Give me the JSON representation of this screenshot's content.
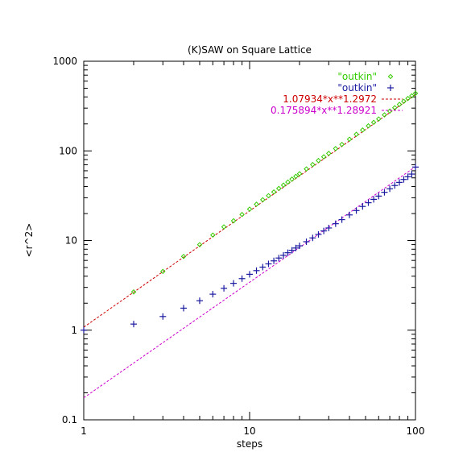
{
  "chart_data": {
    "type": "scatter",
    "title": "(K)SAW on Square Lattice",
    "xlabel": "steps",
    "ylabel": "<r^2>",
    "xscale": "log",
    "yscale": "log",
    "xlim": [
      1,
      100
    ],
    "ylim": [
      0.1,
      1000
    ],
    "x_ticks": [
      1,
      10,
      100
    ],
    "x_tick_labels": [
      "1",
      "10",
      "100"
    ],
    "y_ticks": [
      0.1,
      1,
      10,
      100,
      1000
    ],
    "y_tick_labels": [
      "0.1",
      "1",
      "10",
      "100",
      "1000"
    ],
    "grid": false,
    "legend_position": "top-right",
    "series": [
      {
        "name": "\"outkin\"",
        "marker": "diamond",
        "color": "#33cc00",
        "x": [
          2,
          3,
          4,
          5,
          6,
          7,
          8,
          9,
          10,
          11,
          12,
          13,
          14,
          15,
          16,
          17,
          18,
          19,
          20,
          22,
          24,
          26,
          28,
          30,
          33,
          36,
          40,
          44,
          48,
          52,
          56,
          60,
          65,
          70,
          75,
          80,
          85,
          90,
          95,
          100
        ],
        "y": [
          2.67,
          4.52,
          6.64,
          8.99,
          11.5,
          14.2,
          16.6,
          19.5,
          22.4,
          25.4,
          28.5,
          31.6,
          34.8,
          38.1,
          41.5,
          44.9,
          48.4,
          52.0,
          55.6,
          62.9,
          70.4,
          78.1,
          85.9,
          93.8,
          106,
          118,
          135,
          153,
          171,
          190,
          208,
          227,
          252,
          278,
          303,
          330,
          357,
          384,
          411,
          439
        ]
      },
      {
        "name": "\"outkin\"",
        "marker": "plus",
        "color": "#1a1aa0",
        "x": [
          1,
          2,
          3,
          4,
          5,
          6,
          7,
          8,
          9,
          10,
          11,
          12,
          13,
          14,
          15,
          16,
          17,
          18,
          19,
          20,
          22,
          24,
          26,
          28,
          30,
          33,
          36,
          40,
          44,
          48,
          52,
          56,
          60,
          65,
          70,
          75,
          80,
          85,
          90,
          95,
          100
        ],
        "y": [
          1.0,
          1.17,
          1.42,
          1.76,
          2.13,
          2.52,
          2.93,
          3.33,
          3.76,
          4.2,
          4.62,
          5.05,
          5.49,
          5.93,
          6.38,
          6.84,
          7.31,
          7.78,
          8.25,
          8.73,
          9.7,
          10.7,
          11.7,
          12.8,
          13.8,
          15.4,
          17.1,
          19.3,
          21.6,
          24.0,
          26.4,
          28.8,
          31.3,
          34.5,
          37.8,
          41.1,
          44.5,
          48.0,
          51.5,
          55.1,
          66.0
        ]
      },
      {
        "name": "1.07934*x**1.2972",
        "type": "line",
        "style": "dashed",
        "color": "#cc0000",
        "coef": 1.07934,
        "exponent": 1.2972
      },
      {
        "name": "0.175894*x**1.28921",
        "type": "line",
        "style": "dashed",
        "color": "#cc00cc",
        "coef": 0.175894,
        "exponent": 1.28921
      }
    ]
  }
}
